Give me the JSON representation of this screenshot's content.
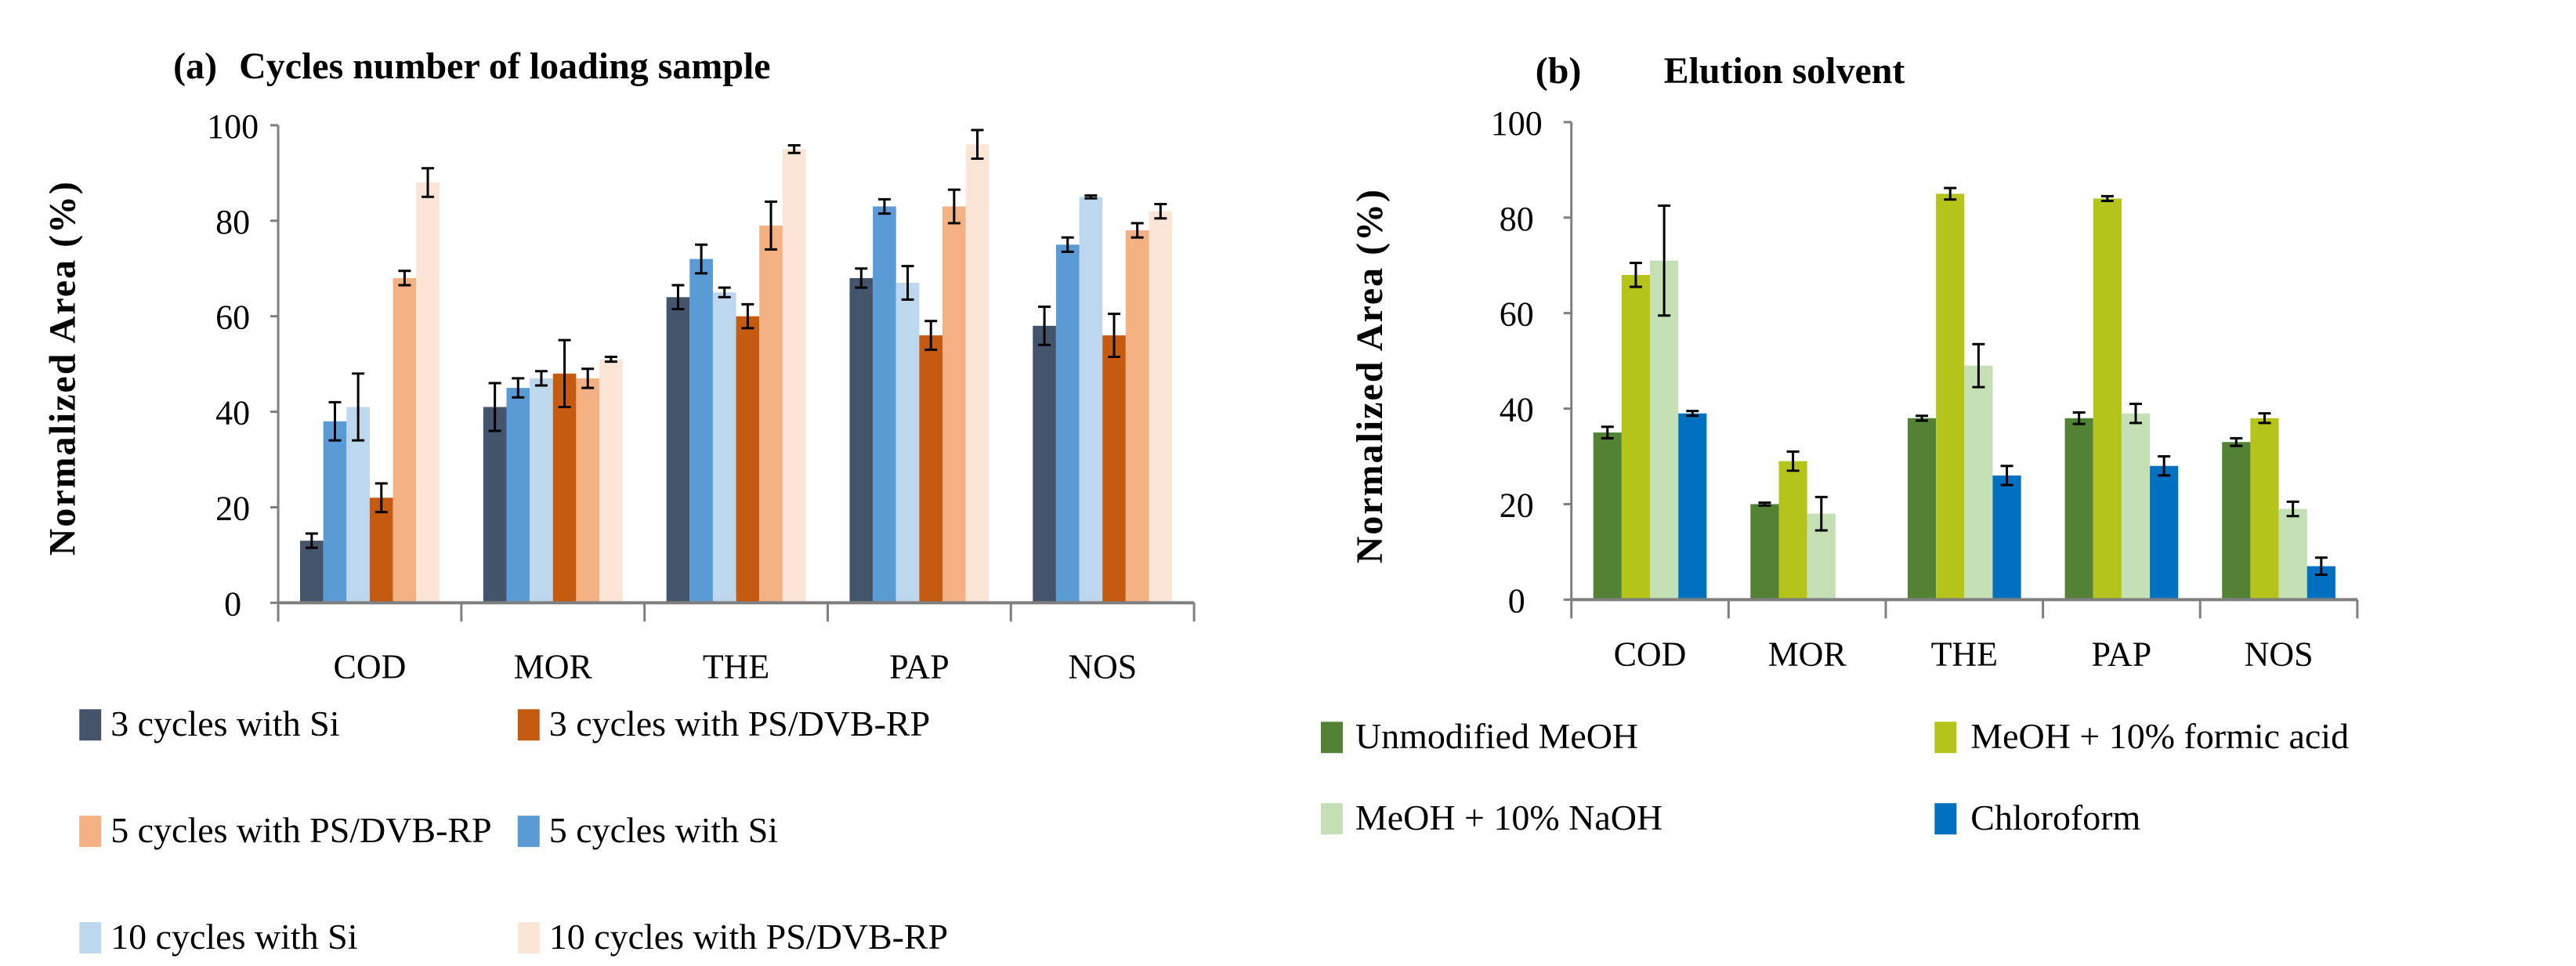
{
  "chart_data": [
    {
      "type": "bar",
      "panel_label": "(a)",
      "title": "Cycles number of loading sample",
      "ylabel": "Normalized Area (%)",
      "xlabel": "",
      "ylim": [
        0,
        100
      ],
      "yticks": [
        "0",
        "20",
        "40",
        "60",
        "80",
        "100"
      ],
      "categories": [
        "COD",
        "MOR",
        "THE",
        "PAP",
        "NOS"
      ],
      "series": [
        {
          "name": "3 cycles with Si",
          "color": "#44546a",
          "values": [
            13,
            41,
            64,
            68,
            58
          ],
          "errors": [
            1.5,
            5,
            2.5,
            2,
            4
          ]
        },
        {
          "name": "5 cycles with Si",
          "color": "#5b9bd5",
          "values": [
            38,
            45,
            72,
            83,
            75
          ],
          "errors": [
            4,
            2,
            3,
            1.5,
            1.5
          ]
        },
        {
          "name": "10 cycles with Si",
          "color": "#bdd7ee",
          "values": [
            41,
            47,
            65,
            67,
            85
          ],
          "errors": [
            7,
            1.5,
            1,
            3.5,
            0.3
          ]
        },
        {
          "name": "3 cycles with PS/DVB-RP",
          "color": "#c55a11",
          "values": [
            22,
            48,
            60,
            56,
            56
          ],
          "errors": [
            3,
            7,
            2.5,
            3,
            4.5
          ]
        },
        {
          "name": "5 cycles with PS/DVB-RP",
          "color": "#f4b183",
          "values": [
            68,
            47,
            79,
            83,
            78
          ],
          "errors": [
            1.5,
            2,
            5,
            3.5,
            1.5
          ]
        },
        {
          "name": "10 cycles with PS/DVB-RP",
          "color": "#fbe5d6",
          "values": [
            88,
            51,
            95,
            96,
            82
          ],
          "errors": [
            3,
            0.5,
            0.8,
            3,
            1.5
          ]
        }
      ],
      "legend_order": [
        0,
        4,
        2,
        3,
        1,
        5
      ],
      "grid": false,
      "legend": "bottom"
    },
    {
      "type": "bar",
      "panel_label": "(b)",
      "title": "Elution solvent",
      "ylabel": "Normalized Area (%)",
      "xlabel": "",
      "ylim": [
        0,
        100
      ],
      "yticks": [
        "0",
        "20",
        "40",
        "60",
        "80",
        "100"
      ],
      "categories": [
        "COD",
        "MOR",
        "THE",
        "PAP",
        "NOS"
      ],
      "series": [
        {
          "name": "Unmodified MeOH",
          "color": "#548235",
          "values": [
            35,
            20,
            38,
            38,
            33
          ],
          "errors": [
            1.2,
            0.3,
            0.5,
            1.2,
            0.8
          ]
        },
        {
          "name": "MeOH + 10% formic acid",
          "color": "#b4c41a",
          "values": [
            68,
            29,
            85,
            84,
            38
          ],
          "errors": [
            2.5,
            2,
            1.2,
            0.5,
            1
          ]
        },
        {
          "name": "MeOH + 10% NaOH",
          "color": "#c5e0b4",
          "values": [
            71,
            18,
            49,
            39,
            19
          ],
          "errors": [
            11.5,
            3.5,
            4.5,
            2,
            1.5
          ]
        },
        {
          "name": "Chloroform",
          "color": "#0070c0",
          "values": [
            39,
            0,
            26,
            28,
            7
          ],
          "errors": [
            0.5,
            0,
            2,
            2,
            1.8
          ]
        }
      ],
      "legend_order": [
        0,
        2,
        1,
        3
      ],
      "grid": false,
      "legend": "bottom"
    }
  ]
}
